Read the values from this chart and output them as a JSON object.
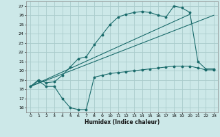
{
  "xlabel": "Humidex (Indice chaleur)",
  "bg_color": "#cce8e8",
  "grid_color": "#aacccc",
  "line_color": "#1a6b6b",
  "xlim": [
    -0.5,
    23.5
  ],
  "ylim": [
    15.5,
    27.5
  ],
  "xticks": [
    0,
    1,
    2,
    3,
    4,
    5,
    6,
    7,
    8,
    9,
    10,
    11,
    12,
    13,
    14,
    15,
    16,
    17,
    18,
    19,
    20,
    21,
    22,
    23
  ],
  "yticks": [
    16,
    17,
    18,
    19,
    20,
    21,
    22,
    23,
    24,
    25,
    26,
    27
  ],
  "line1_x": [
    0,
    1,
    2,
    3,
    4,
    5,
    6,
    7,
    8,
    9,
    10,
    11,
    12,
    13,
    14,
    15,
    16,
    17,
    18,
    19,
    20,
    21,
    22,
    23
  ],
  "line1_y": [
    18.3,
    18.9,
    18.3,
    18.3,
    17.0,
    16.0,
    15.8,
    15.8,
    19.3,
    19.5,
    19.7,
    19.8,
    19.9,
    20.0,
    20.1,
    20.2,
    20.3,
    20.4,
    20.5,
    20.5,
    20.5,
    20.3,
    20.1,
    20.1
  ],
  "line2_x": [
    0,
    1,
    2,
    3,
    4,
    5,
    6,
    7,
    8,
    9,
    10,
    11,
    12,
    13,
    14,
    15,
    16,
    17,
    18,
    19,
    20,
    21,
    22,
    23
  ],
  "line2_y": [
    18.3,
    19.0,
    18.7,
    18.8,
    19.5,
    20.4,
    21.3,
    21.5,
    22.8,
    23.9,
    25.0,
    25.8,
    26.1,
    26.3,
    26.4,
    26.3,
    26.0,
    25.8,
    27.0,
    26.8,
    26.3,
    21.0,
    20.2,
    20.2
  ],
  "line3_x": [
    0,
    23
  ],
  "line3_y": [
    18.3,
    26.0
  ],
  "line4_x": [
    0,
    20
  ],
  "line4_y": [
    18.3,
    26.1
  ]
}
